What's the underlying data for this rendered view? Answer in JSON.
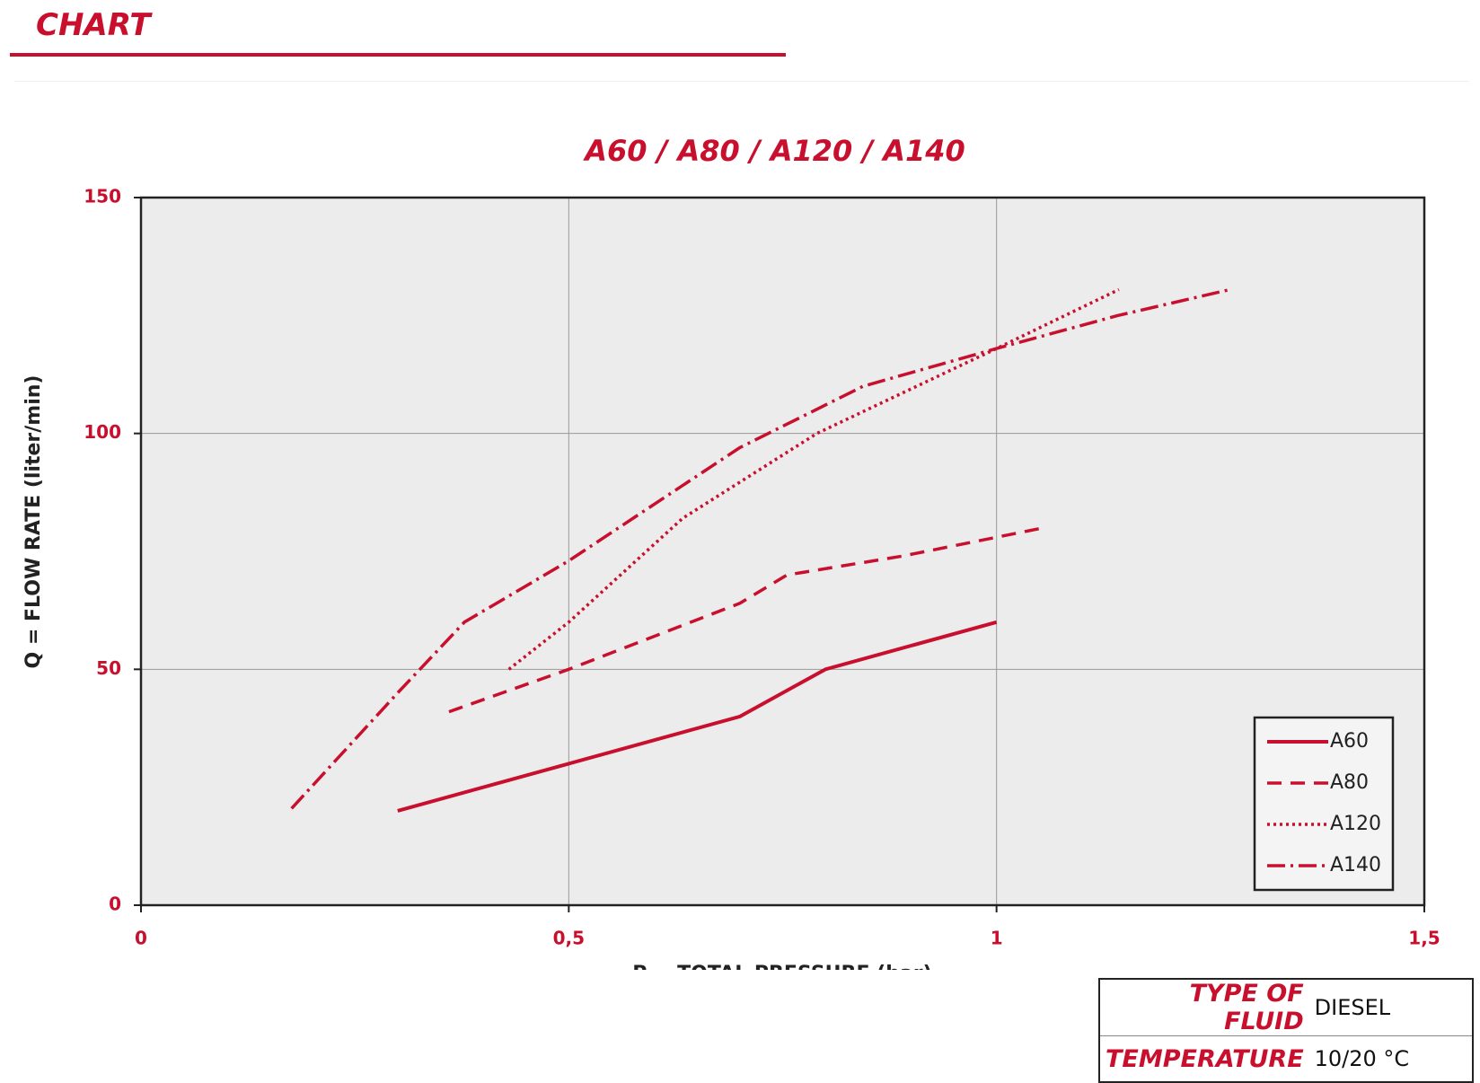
{
  "header": {
    "title": "CHART"
  },
  "chart_data": {
    "type": "line",
    "title": "A60 / A80 / A120 / A140",
    "xlabel": "P = TOTAL PRESSURE (bar)",
    "ylabel": "Q = FLOW RATE (liter/min)",
    "xlim": [
      0,
      1.5
    ],
    "ylim": [
      0,
      150
    ],
    "xticks": [
      0,
      {
        "value": 0.5,
        "label": "0,5"
      },
      1,
      {
        "value": 1.5,
        "label": "1,5"
      }
    ],
    "yticks": [
      0,
      50,
      100,
      150
    ],
    "grid": true,
    "legend": "lower right",
    "color": "#c8102e",
    "series": [
      {
        "name": "A60",
        "linestyle": "solid",
        "x": [
          0.3,
          0.5,
          0.7,
          0.8,
          1.0
        ],
        "values": [
          20,
          30,
          40,
          50,
          60
        ]
      },
      {
        "name": "A80",
        "linestyle": "dashed",
        "x": [
          0.36,
          0.5,
          0.7,
          0.755,
          0.89,
          1.0,
          1.055
        ],
        "values": [
          41,
          50,
          64,
          70,
          74,
          78,
          80
        ]
      },
      {
        "name": "A120",
        "linestyle": "dotted",
        "x": [
          0.43,
          0.5,
          0.633,
          0.79,
          1.0,
          1.143
        ],
        "values": [
          50,
          60,
          82,
          100,
          118,
          130.5
        ]
      },
      {
        "name": "A140",
        "linestyle": "dashdot",
        "x": [
          0.176,
          0.3,
          0.378,
          0.5,
          0.7,
          0.844,
          1.0,
          1.142,
          1.273
        ],
        "values": [
          20.5,
          45,
          60,
          73,
          97,
          110,
          118,
          125,
          130.5
        ]
      }
    ]
  },
  "info": {
    "rows": [
      [
        "TYPE OF FLUID",
        "DIESEL"
      ],
      [
        "TEMPERATURE",
        "10/20 °C"
      ]
    ]
  }
}
